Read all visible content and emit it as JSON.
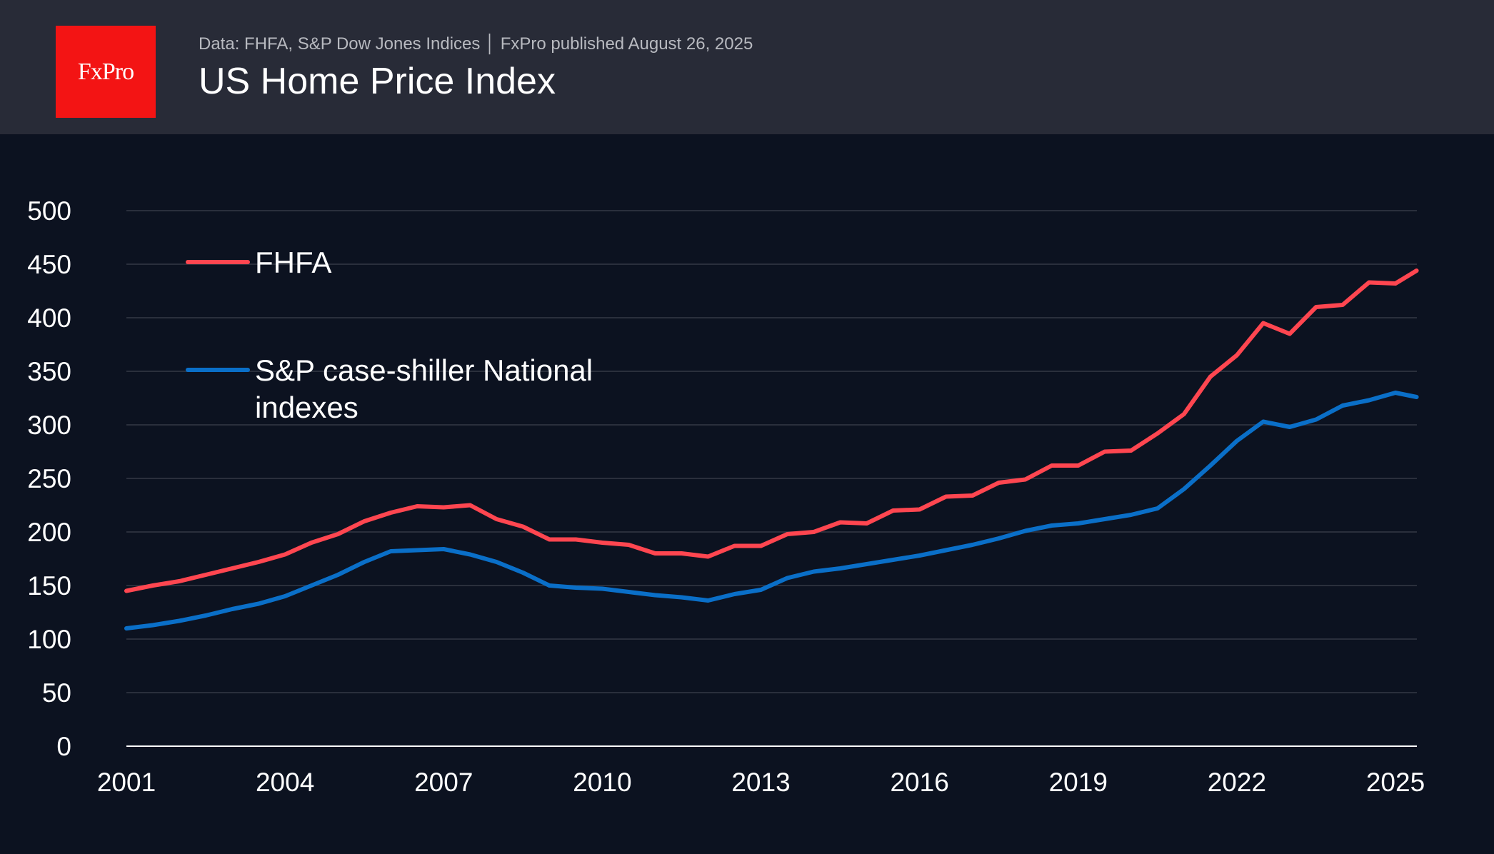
{
  "header": {
    "logo_text": "FxPro",
    "subtitle": "Data: FHFA, S&P Dow Jones Indices │ FxPro published August 26, 2025",
    "title": "US Home Price Index"
  },
  "colors": {
    "background": "#0c1220",
    "header": "#282b37",
    "logo": "#f31414",
    "fhfa": "#ff4650",
    "sp": "#0a6fc8",
    "grid": "#2a2f3c"
  },
  "chart_data": {
    "type": "line",
    "title": "US Home Price Index",
    "xlim": [
      2001,
      2025.4
    ],
    "ylim": [
      0,
      500
    ],
    "x_ticks": [
      "2001",
      "2004",
      "2007",
      "2010",
      "2013",
      "2016",
      "2019",
      "2022",
      "2025"
    ],
    "y_ticks": [
      "0",
      "50",
      "100",
      "150",
      "200",
      "250",
      "300",
      "350",
      "400",
      "450",
      "500"
    ],
    "grid": "horizontal",
    "legend_placement": "top-left",
    "x": [
      2001,
      2001.5,
      2002,
      2002.5,
      2003,
      2003.5,
      2004,
      2004.5,
      2005,
      2005.5,
      2006,
      2006.5,
      2007,
      2007.5,
      2008,
      2008.5,
      2009,
      2009.5,
      2010,
      2010.5,
      2011,
      2011.5,
      2012,
      2012.5,
      2013,
      2013.5,
      2014,
      2014.5,
      2015,
      2015.5,
      2016,
      2016.5,
      2017,
      2017.5,
      2018,
      2018.5,
      2019,
      2019.5,
      2020,
      2020.5,
      2021,
      2021.5,
      2022,
      2022.5,
      2023,
      2023.5,
      2024,
      2024.5,
      2025,
      2025.4
    ],
    "series": [
      {
        "name": "FHFA",
        "color": "#ff4650",
        "values": [
          145,
          150,
          154,
          160,
          166,
          172,
          179,
          190,
          198,
          210,
          218,
          224,
          223,
          225,
          212,
          205,
          193,
          193,
          190,
          188,
          180,
          180,
          177,
          187,
          187,
          198,
          200,
          209,
          208,
          220,
          221,
          233,
          234,
          246,
          249,
          262,
          262,
          275,
          276,
          292,
          310,
          345,
          365,
          395,
          385,
          410,
          412,
          433,
          432,
          444
        ]
      },
      {
        "name": "S&P case-shiller National indexes",
        "color": "#0a6fc8",
        "values": [
          110,
          113,
          117,
          122,
          128,
          133,
          140,
          150,
          160,
          172,
          182,
          183,
          184,
          179,
          172,
          162,
          150,
          148,
          147,
          144,
          141,
          139,
          136,
          142,
          146,
          157,
          163,
          166,
          170,
          174,
          178,
          183,
          188,
          194,
          201,
          206,
          208,
          212,
          216,
          222,
          240,
          262,
          285,
          303,
          298,
          305,
          318,
          323,
          330,
          326
        ]
      }
    ],
    "legend": [
      {
        "lines": [
          "FHFA"
        ]
      },
      {
        "lines": [
          "S&P case-shiller National",
          "indexes"
        ]
      }
    ]
  }
}
